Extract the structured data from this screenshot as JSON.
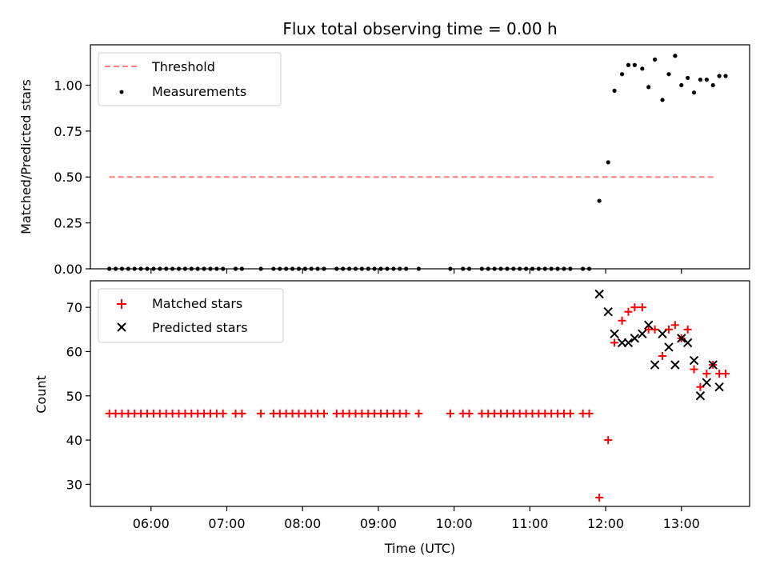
{
  "chart_data": [
    {
      "type": "scatter",
      "title": "Flux total observing time = 0.00 h",
      "xlabel": "",
      "ylabel": "Matched/Predicted stars",
      "xlim": [
        "05:12",
        "13:54"
      ],
      "ylim": [
        0,
        1.22
      ],
      "x_ticks": [
        "06:00",
        "07:00",
        "08:00",
        "09:00",
        "10:00",
        "11:00",
        "12:00",
        "13:00"
      ],
      "y_ticks": [
        0.0,
        0.25,
        0.5,
        0.75,
        1.0
      ],
      "y_tick_labels": [
        "0.00",
        "0.25",
        "0.50",
        "0.75",
        "1.00"
      ],
      "grid": false,
      "legend_position": "top-left",
      "series": [
        {
          "name": "Threshold",
          "kind": "dashed-line",
          "color": "#ff7f7f",
          "x": [
            "05:27",
            "13:27"
          ],
          "y": [
            0.5,
            0.5
          ]
        },
        {
          "name": "Measurements",
          "kind": "dots",
          "color": "#000000",
          "x": [
            "05:27",
            "05:32",
            "05:37",
            "05:42",
            "05:47",
            "05:52",
            "05:57",
            "06:02",
            "06:07",
            "06:12",
            "06:17",
            "06:22",
            "06:27",
            "06:32",
            "06:37",
            "06:42",
            "06:47",
            "06:52",
            "06:57",
            "07:07",
            "07:12",
            "07:27",
            "07:37",
            "07:42",
            "07:47",
            "07:52",
            "07:57",
            "08:02",
            "08:07",
            "08:12",
            "08:17",
            "08:27",
            "08:32",
            "08:37",
            "08:42",
            "08:47",
            "08:52",
            "08:57",
            "09:02",
            "09:07",
            "09:12",
            "09:17",
            "09:22",
            "09:32",
            "09:57",
            "10:07",
            "10:12",
            "10:22",
            "10:27",
            "10:32",
            "10:37",
            "10:42",
            "10:47",
            "10:52",
            "10:57",
            "11:02",
            "11:07",
            "11:12",
            "11:17",
            "11:22",
            "11:27",
            "11:32",
            "11:42",
            "11:47",
            "11:55",
            "12:02",
            "12:07",
            "12:13",
            "12:18",
            "12:23",
            "12:29",
            "12:34",
            "12:39",
            "12:45",
            "12:50",
            "12:55",
            "13:00",
            "13:05",
            "13:10",
            "13:15",
            "13:20",
            "13:25",
            "13:30",
            "13:35"
          ],
          "y": [
            0,
            0,
            0,
            0,
            0,
            0,
            0,
            0,
            0,
            0,
            0,
            0,
            0,
            0,
            0,
            0,
            0,
            0,
            0,
            0,
            0,
            0,
            0,
            0,
            0,
            0,
            0,
            0,
            0,
            0,
            0,
            0,
            0,
            0,
            0,
            0,
            0,
            0,
            0,
            0,
            0,
            0,
            0,
            0,
            0,
            0,
            0,
            0,
            0,
            0,
            0,
            0,
            0,
            0,
            0,
            0,
            0,
            0,
            0,
            0,
            0,
            0,
            0,
            0,
            0.37,
            0.58,
            0.97,
            1.06,
            1.11,
            1.11,
            1.09,
            0.99,
            1.14,
            0.92,
            1.06,
            1.16,
            1.0,
            1.04,
            0.96,
            1.03,
            1.03,
            1.0,
            1.05,
            1.05
          ]
        }
      ]
    },
    {
      "type": "scatter",
      "title": "",
      "xlabel": "Time (UTC)",
      "ylabel": "Count",
      "xlim": [
        "05:12",
        "13:54"
      ],
      "ylim": [
        25,
        76
      ],
      "x_ticks": [
        "06:00",
        "07:00",
        "08:00",
        "09:00",
        "10:00",
        "11:00",
        "12:00",
        "13:00"
      ],
      "y_ticks": [
        30,
        40,
        50,
        60,
        70
      ],
      "y_tick_labels": [
        "30",
        "40",
        "50",
        "60",
        "70"
      ],
      "grid": false,
      "legend_position": "top-left",
      "series": [
        {
          "name": "Matched stars",
          "kind": "plus",
          "color": "#ff0000",
          "x": [
            "05:27",
            "05:32",
            "05:37",
            "05:42",
            "05:47",
            "05:52",
            "05:57",
            "06:02",
            "06:07",
            "06:12",
            "06:17",
            "06:22",
            "06:27",
            "06:32",
            "06:37",
            "06:42",
            "06:47",
            "06:52",
            "06:57",
            "07:07",
            "07:12",
            "07:27",
            "07:37",
            "07:42",
            "07:47",
            "07:52",
            "07:57",
            "08:02",
            "08:07",
            "08:12",
            "08:17",
            "08:27",
            "08:32",
            "08:37",
            "08:42",
            "08:47",
            "08:52",
            "08:57",
            "09:02",
            "09:07",
            "09:12",
            "09:17",
            "09:22",
            "09:32",
            "09:57",
            "10:07",
            "10:12",
            "10:22",
            "10:27",
            "10:32",
            "10:37",
            "10:42",
            "10:47",
            "10:52",
            "10:57",
            "11:02",
            "11:07",
            "11:12",
            "11:17",
            "11:22",
            "11:27",
            "11:32",
            "11:42",
            "11:47",
            "11:55",
            "12:02",
            "12:07",
            "12:13",
            "12:18",
            "12:23",
            "12:29",
            "12:34",
            "12:39",
            "12:45",
            "12:50",
            "12:55",
            "13:00",
            "13:05",
            "13:10",
            "13:15",
            "13:20",
            "13:25",
            "13:30",
            "13:35"
          ],
          "y": [
            46,
            46,
            46,
            46,
            46,
            46,
            46,
            46,
            46,
            46,
            46,
            46,
            46,
            46,
            46,
            46,
            46,
            46,
            46,
            46,
            46,
            46,
            46,
            46,
            46,
            46,
            46,
            46,
            46,
            46,
            46,
            46,
            46,
            46,
            46,
            46,
            46,
            46,
            46,
            46,
            46,
            46,
            46,
            46,
            46,
            46,
            46,
            46,
            46,
            46,
            46,
            46,
            46,
            46,
            46,
            46,
            46,
            46,
            46,
            46,
            46,
            46,
            46,
            46,
            27,
            40,
            62,
            67,
            69,
            70,
            70,
            65,
            65,
            59,
            65,
            66,
            63,
            65,
            56,
            52,
            55,
            57,
            55,
            55
          ]
        },
        {
          "name": "Predicted stars",
          "kind": "x",
          "color": "#000000",
          "x": [
            "11:55",
            "12:02",
            "12:07",
            "12:13",
            "12:18",
            "12:23",
            "12:29",
            "12:34",
            "12:39",
            "12:45",
            "12:50",
            "12:55",
            "13:00",
            "13:05",
            "13:10",
            "13:15",
            "13:20",
            "13:25",
            "13:30"
          ],
          "y": [
            73,
            69,
            64,
            62,
            62,
            63,
            64,
            66,
            57,
            64,
            61,
            57,
            63,
            62,
            58,
            50,
            53,
            57,
            52
          ]
        }
      ]
    }
  ]
}
